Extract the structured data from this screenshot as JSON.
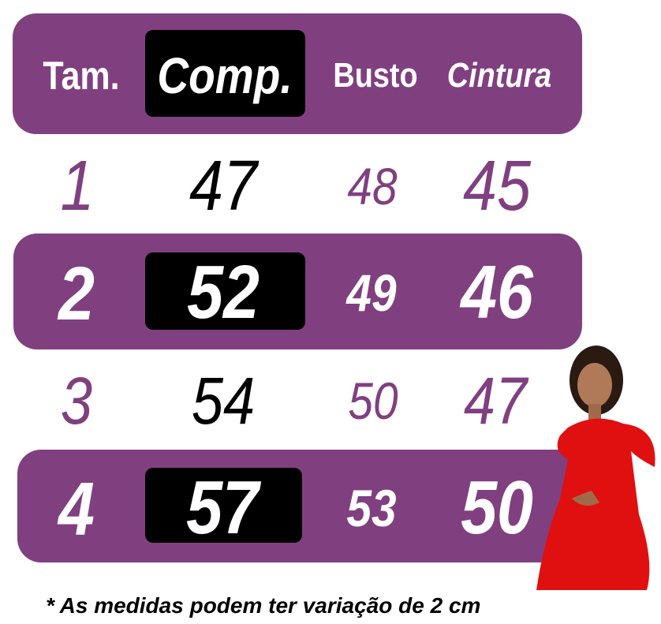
{
  "colors": {
    "accent": "#804080",
    "highlight": "#000000",
    "text_light": "#ffffff"
  },
  "headers": [
    "Tam.",
    "Comp.",
    "Busto",
    "Cintura"
  ],
  "rows": [
    {
      "tam": "1",
      "comp": "47",
      "busto": "48",
      "cintura": "45"
    },
    {
      "tam": "2",
      "comp": "52",
      "busto": "49",
      "cintura": "46"
    },
    {
      "tam": "3",
      "comp": "54",
      "busto": "50",
      "cintura": "47"
    },
    {
      "tam": "4",
      "comp": "57",
      "busto": "53",
      "cintura": "50"
    }
  ],
  "footnote": "* As medidas podem ter variação de 2 cm",
  "image": "girl-in-red-dress-photo"
}
